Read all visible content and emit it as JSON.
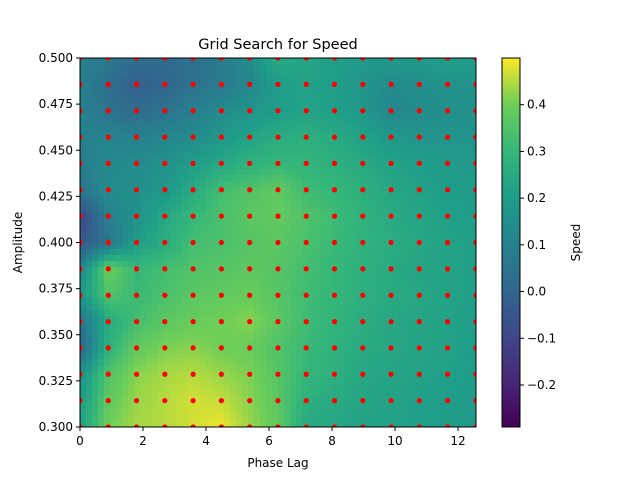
{
  "chart_data": {
    "type": "heatmap",
    "title": "Grid Search for Speed",
    "xlabel": "Phase Lag",
    "ylabel": "Amplitude",
    "xlim": [
      0,
      12.57
    ],
    "ylim": [
      0.3,
      0.5
    ],
    "x_ticks": [
      0,
      2,
      4,
      6,
      8,
      10,
      12
    ],
    "x_tick_labels": [
      "0",
      "2",
      "4",
      "6",
      "8",
      "10",
      "12"
    ],
    "y_ticks": [
      0.3,
      0.325,
      0.35,
      0.375,
      0.4,
      0.425,
      0.45,
      0.475,
      0.5
    ],
    "y_tick_labels": [
      "0.300",
      "0.325",
      "0.350",
      "0.375",
      "0.400",
      "0.425",
      "0.450",
      "0.475",
      "0.500"
    ],
    "colorbar": {
      "label": "Speed",
      "colormap": "viridis",
      "range": [
        -0.29,
        0.5
      ],
      "ticks": [
        -0.2,
        -0.1,
        0.0,
        0.1,
        0.2,
        0.3,
        0.4
      ],
      "tick_labels": [
        "−0.2",
        "−0.1",
        "0.0",
        "0.1",
        "0.2",
        "0.3",
        "0.4"
      ]
    },
    "sample_points": {
      "color": "#ff0000",
      "x": [
        0.0,
        0.898,
        1.795,
        2.693,
        3.59,
        4.488,
        5.386,
        6.283,
        7.181,
        8.078,
        8.976,
        9.874,
        10.771,
        11.669,
        12.566
      ],
      "y": [
        0.3,
        0.3143,
        0.3286,
        0.3429,
        0.3571,
        0.3714,
        0.3857,
        0.4,
        0.4143,
        0.4286,
        0.4429,
        0.4571,
        0.4714,
        0.4857,
        0.5
      ]
    },
    "z": [
      [
        0.22,
        0.4,
        0.44,
        0.45,
        0.47,
        0.49,
        0.43,
        0.38,
        0.25,
        0.24,
        0.22,
        0.22,
        0.21,
        0.2,
        0.19
      ],
      [
        0.2,
        0.38,
        0.43,
        0.45,
        0.47,
        0.46,
        0.42,
        0.37,
        0.27,
        0.25,
        0.23,
        0.22,
        0.21,
        0.2,
        0.19
      ],
      [
        0.16,
        0.35,
        0.42,
        0.44,
        0.45,
        0.43,
        0.41,
        0.36,
        0.3,
        0.27,
        0.24,
        0.23,
        0.22,
        0.21,
        0.2
      ],
      [
        0.0,
        0.28,
        0.38,
        0.41,
        0.42,
        0.4,
        0.39,
        0.35,
        0.31,
        0.28,
        0.25,
        0.24,
        0.23,
        0.22,
        0.2
      ],
      [
        0.05,
        0.25,
        0.33,
        0.37,
        0.39,
        0.4,
        0.42,
        0.37,
        0.32,
        0.29,
        0.26,
        0.24,
        0.23,
        0.22,
        0.2
      ],
      [
        0.18,
        0.35,
        0.31,
        0.34,
        0.37,
        0.38,
        0.39,
        0.36,
        0.32,
        0.3,
        0.27,
        0.25,
        0.24,
        0.22,
        0.21
      ],
      [
        0.12,
        0.4,
        0.3,
        0.33,
        0.35,
        0.36,
        0.37,
        0.36,
        0.33,
        0.3,
        0.27,
        0.25,
        0.23,
        0.22,
        0.21
      ],
      [
        -0.05,
        0.05,
        0.2,
        0.26,
        0.33,
        0.34,
        0.36,
        0.37,
        0.34,
        0.31,
        0.28,
        0.26,
        0.24,
        0.22,
        0.21
      ],
      [
        -0.1,
        0.1,
        0.16,
        0.24,
        0.3,
        0.34,
        0.37,
        0.38,
        0.35,
        0.32,
        0.28,
        0.25,
        0.23,
        0.21,
        0.2
      ],
      [
        0.06,
        0.14,
        0.15,
        0.18,
        0.25,
        0.33,
        0.35,
        0.38,
        0.32,
        0.3,
        0.27,
        0.24,
        0.22,
        0.2,
        0.2
      ],
      [
        0.08,
        0.13,
        0.14,
        0.16,
        0.2,
        0.24,
        0.28,
        0.3,
        0.29,
        0.27,
        0.25,
        0.22,
        0.2,
        0.19,
        0.18
      ],
      [
        0.1,
        0.11,
        0.1,
        0.12,
        0.14,
        0.18,
        0.22,
        0.26,
        0.27,
        0.25,
        0.22,
        0.18,
        0.17,
        0.17,
        0.17
      ],
      [
        0.1,
        0.05,
        0.02,
        0.05,
        0.09,
        0.14,
        0.17,
        0.2,
        0.22,
        0.21,
        0.18,
        0.12,
        0.14,
        0.15,
        0.16
      ],
      [
        0.1,
        0.03,
        -0.02,
        0.0,
        0.05,
        0.07,
        0.12,
        0.2,
        0.22,
        0.2,
        0.17,
        0.14,
        0.15,
        0.16,
        0.17
      ],
      [
        0.1,
        0.07,
        0.03,
        0.02,
        0.03,
        0.08,
        0.15,
        0.25,
        0.23,
        0.21,
        0.19,
        0.19,
        0.19,
        0.2,
        0.2
      ]
    ]
  }
}
